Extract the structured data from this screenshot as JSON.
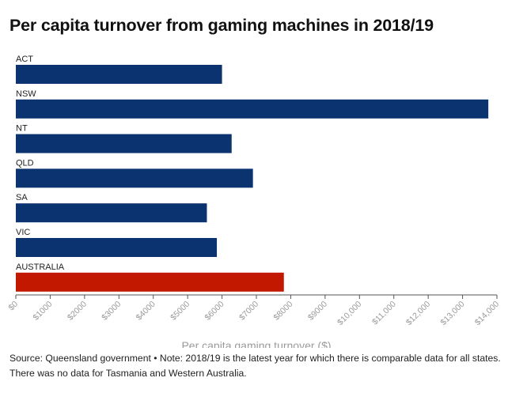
{
  "title": "Per capita turnover from gaming machines in 2018/19",
  "footer": "Source: Queensland government • Note: 2018/19 is the latest year for which there is comparable data for all states. There was no data for Tasmania and Western Australia.",
  "colors": {
    "state_bar": "#0b3370",
    "total_bar": "#c21800",
    "axis": "#555555",
    "tick_text": "#9a9a9a"
  },
  "chart_data": {
    "type": "bar",
    "orientation": "horizontal",
    "categories": [
      "ACT",
      "NSW",
      "NT",
      "QLD",
      "SA",
      "VIC",
      "AUSTRALIA"
    ],
    "values": [
      6000,
      13750,
      6280,
      6900,
      5560,
      5850,
      7800
    ],
    "highlight": "AUSTRALIA",
    "xlabel": "Per capita gaming turnover ($)",
    "xlim": [
      0,
      14000
    ],
    "xticks": [
      0,
      1000,
      2000,
      3000,
      4000,
      5000,
      6000,
      7000,
      8000,
      9000,
      10000,
      11000,
      12000,
      13000,
      14000
    ],
    "xtick_labels": [
      "$0",
      "$1000",
      "$2000",
      "$3000",
      "$4000",
      "$5000",
      "$6000",
      "$7000",
      "$8000",
      "$9000",
      "$10,000",
      "$11,000",
      "$12,000",
      "$13,000",
      "$14,000"
    ],
    "grid": false
  }
}
